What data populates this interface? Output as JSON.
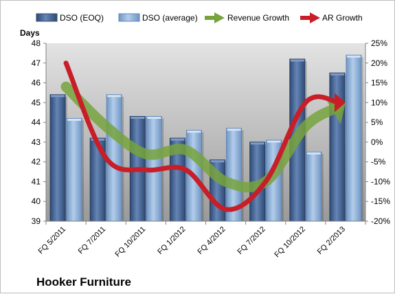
{
  "chart_data": {
    "type": "bar",
    "title": "Hooker Furniture",
    "ylabel_left": "Days",
    "categories": [
      "FQ 5/2011",
      "FQ 7/2011",
      "FQ 10/2011",
      "FQ 1/2012",
      "FQ 4/2012",
      "FQ 7/2012",
      "FQ 10/2012",
      "FQ 2/2013"
    ],
    "ylim_left": [
      39,
      48
    ],
    "yticks_left": [
      "39",
      "40",
      "41",
      "42",
      "43",
      "44",
      "45",
      "46",
      "47",
      "48"
    ],
    "ylim_right": [
      -20,
      25
    ],
    "yticks_right": [
      "-20%",
      "-15%",
      "-10%",
      "-5%",
      "0%",
      "5%",
      "10%",
      "15%",
      "20%",
      "25%"
    ],
    "grid": false,
    "legend_position": "top",
    "series": [
      {
        "name": "DSO (EOQ)",
        "kind": "bar",
        "axis": "left",
        "color": "#4a6a9a",
        "values": [
          45.4,
          43.2,
          44.3,
          43.2,
          42.1,
          43.0,
          47.2,
          46.5
        ]
      },
      {
        "name": "DSO (average)",
        "kind": "bar",
        "axis": "left",
        "color": "#8db3de",
        "values": [
          44.2,
          45.4,
          44.3,
          43.6,
          43.7,
          43.1,
          42.5,
          47.4
        ]
      },
      {
        "name": "Revenue Growth",
        "kind": "arrow-line",
        "axis": "right",
        "color": "#77a33d",
        "values": [
          14,
          4,
          -3,
          -2,
          -10,
          -10,
          4,
          10
        ]
      },
      {
        "name": "AR Growth",
        "kind": "arrow-line",
        "axis": "right",
        "color": "#c81e28",
        "values": [
          20,
          -4,
          -7,
          -7,
          -17,
          -10,
          10,
          10
        ]
      }
    ]
  }
}
